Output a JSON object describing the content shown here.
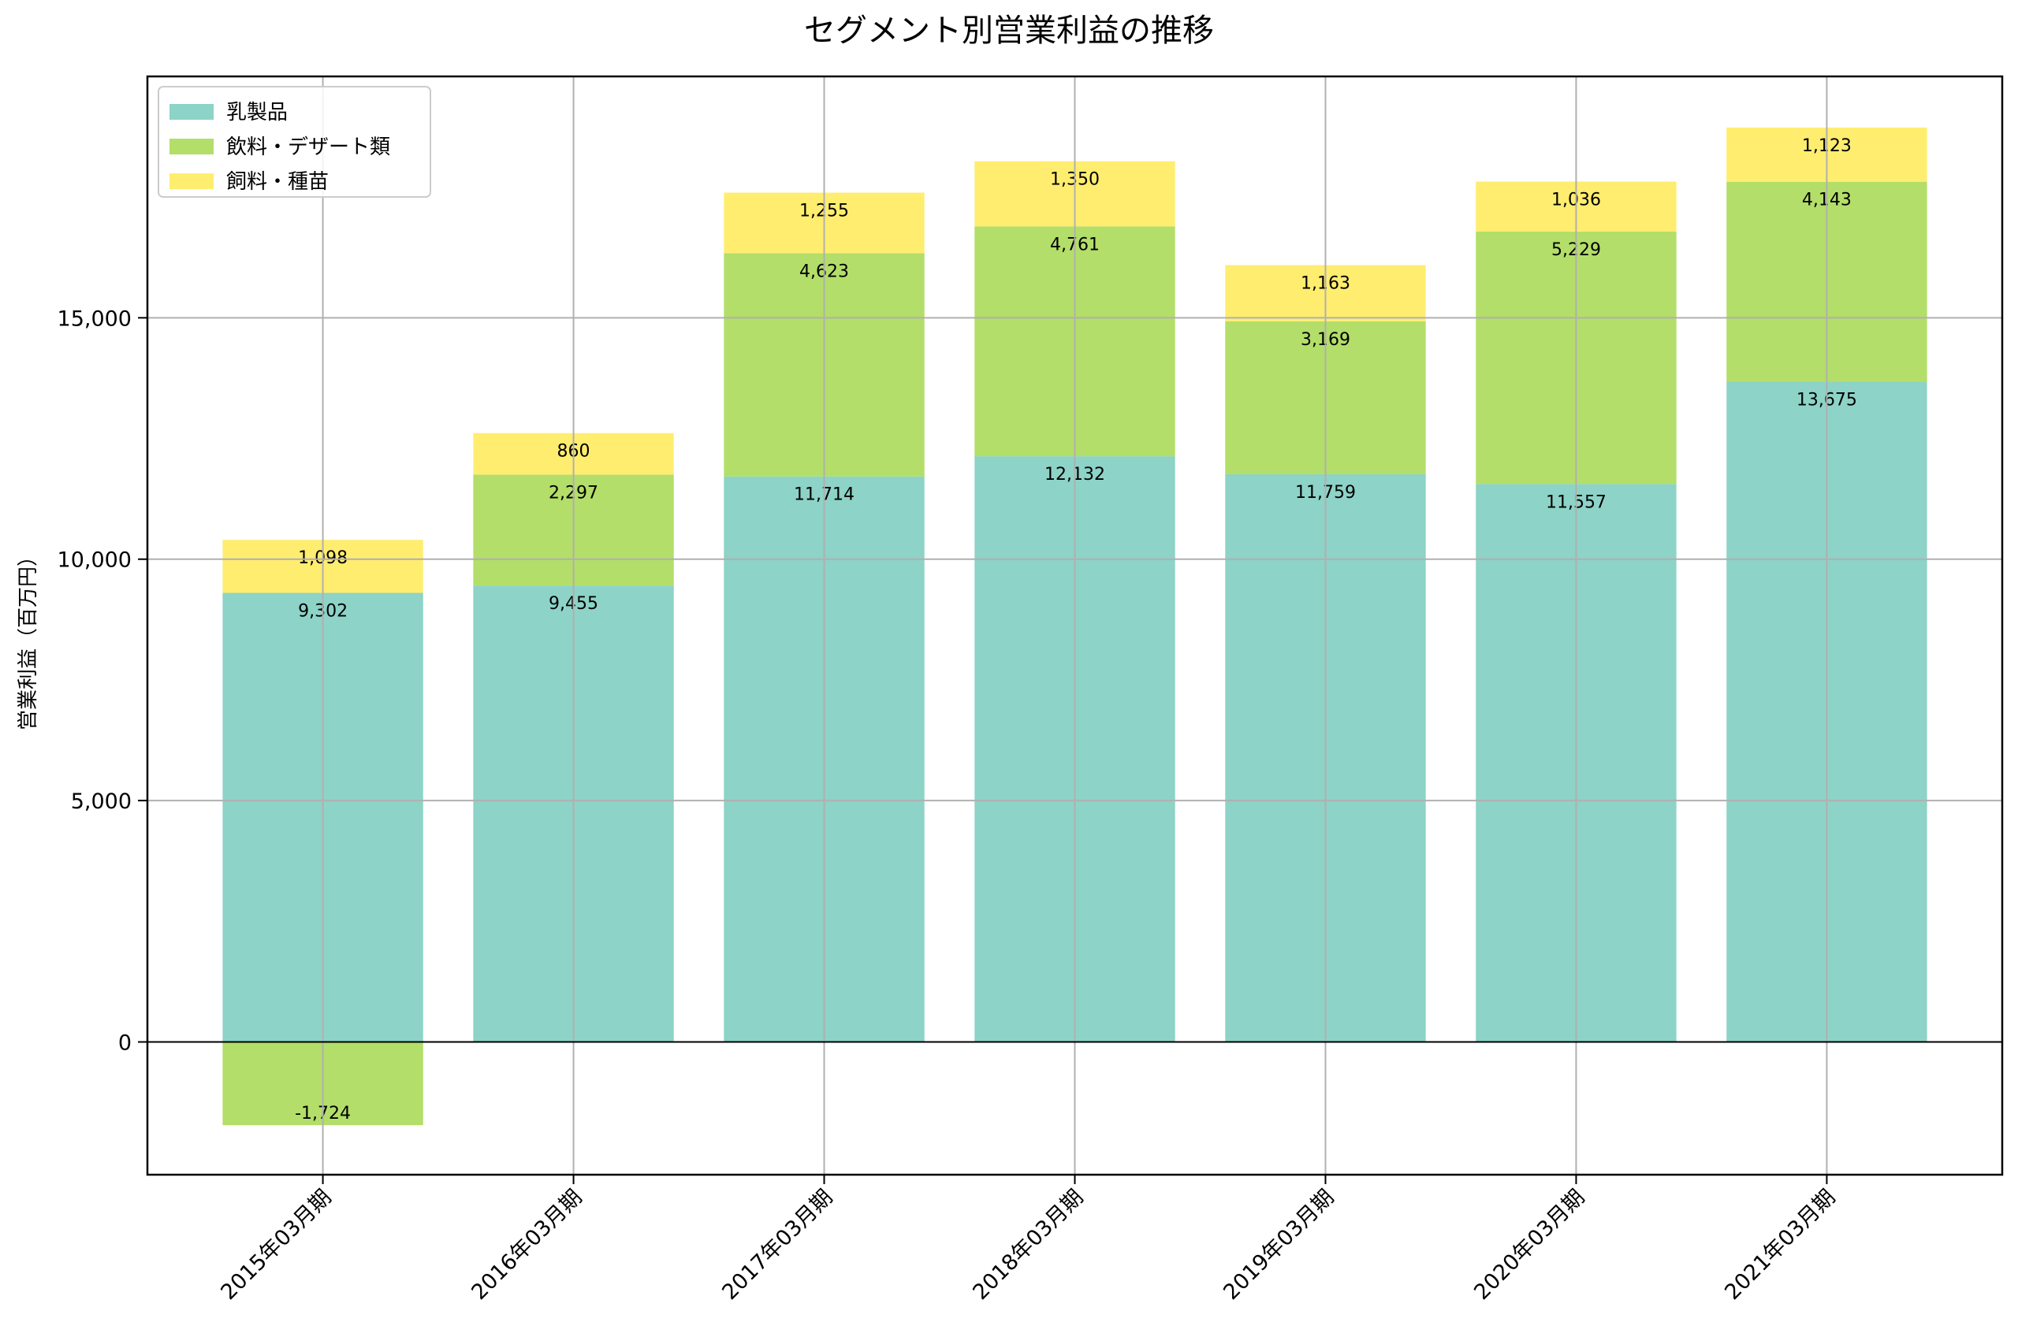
{
  "chart_data": {
    "type": "bar",
    "stacked": true,
    "title": "セグメント別営業利益の推移",
    "xlabel": "",
    "ylabel": "営業利益（百万円）",
    "categories": [
      "2015年03月期",
      "2016年03月期",
      "2017年03月期",
      "2018年03月期",
      "2019年03月期",
      "2020年03月期",
      "2021年03月期"
    ],
    "series": [
      {
        "name": "乳製品",
        "color": "#8dd3c7",
        "values": [
          9302,
          9455,
          11714,
          12132,
          11759,
          11557,
          13675
        ],
        "labels": [
          "9,302",
          "9,455",
          "11,714",
          "12,132",
          "11,759",
          "11,557",
          "13,675"
        ]
      },
      {
        "name": "飲料・デザート類",
        "color": "#b3de69",
        "values": [
          -1724,
          2297,
          4623,
          4761,
          3169,
          5229,
          4143
        ],
        "labels": [
          "-1,724",
          "2,297",
          "4,623",
          "4,761",
          "3,169",
          "5,229",
          "4,143"
        ]
      },
      {
        "name": "飼料・種苗",
        "color": "#ffed6f",
        "values": [
          1098,
          860,
          1255,
          1350,
          1163,
          1036,
          1123
        ],
        "labels": [
          "1,098",
          "860",
          "1,255",
          "1,350",
          "1,163",
          "1,036",
          "1,123"
        ]
      }
    ],
    "ylim": [
      -2750,
      20000
    ],
    "yticks": [
      0,
      5000,
      10000,
      15000
    ],
    "ytick_labels": [
      "0",
      "5,000",
      "10,000",
      "15,000"
    ],
    "grid": true,
    "legend_position": "top-left"
  }
}
